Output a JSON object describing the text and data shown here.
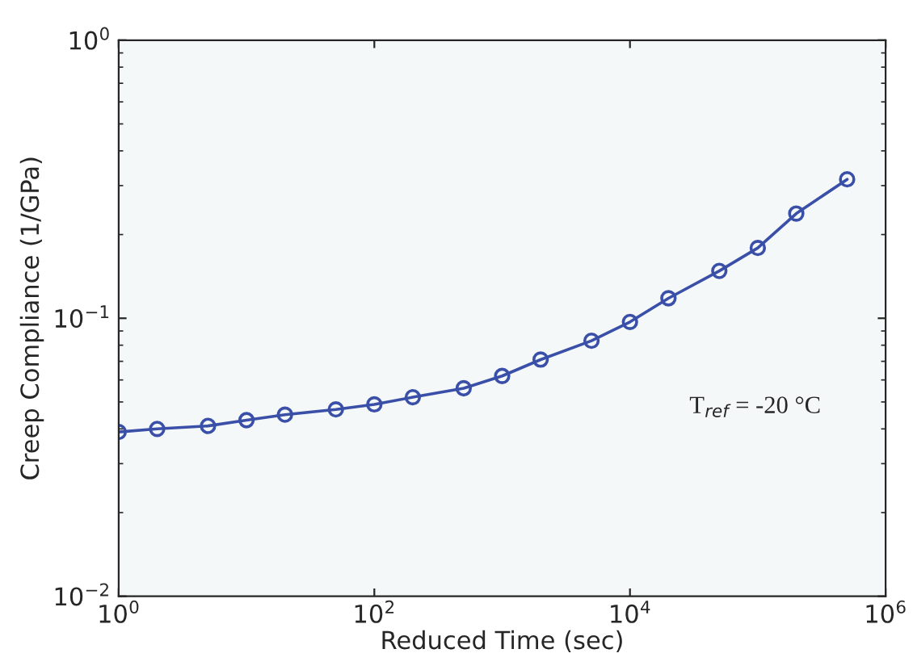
{
  "chart_data": {
    "type": "line",
    "xlabel": "Reduced Time (sec)",
    "ylabel": "Creep Compliance (1/GPa)",
    "log": "xy",
    "x": [
      1,
      2,
      5,
      10,
      20,
      50,
      100,
      200,
      500,
      1000,
      2000,
      5000,
      10000,
      20000,
      50000,
      100000,
      200000,
      500000
    ],
    "series": [
      {
        "color": "#3a4fa8",
        "values": [
          0.039,
          0.04,
          0.041,
          0.043,
          0.045,
          0.047,
          0.049,
          0.052,
          0.056,
          0.062,
          0.071,
          0.083,
          0.097,
          0.118,
          0.148,
          0.179,
          0.238,
          0.316
        ]
      }
    ],
    "marker": "circle",
    "line_style": "solid",
    "xlim": [
      1,
      1000000
    ],
    "ylim": [
      0.01,
      1
    ],
    "xticks": [
      {
        "value": 1,
        "label": "10$^{0}$"
      },
      {
        "value": 100,
        "label": "10$^{2}$"
      },
      {
        "value": 10000,
        "label": "10$^{4}$"
      },
      {
        "value": 1000000,
        "label": "10$^{6}$"
      }
    ],
    "yticks": [
      {
        "value": 0.01,
        "label": "10$^{−2}$"
      },
      {
        "value": 0.1,
        "label": "10$^{−1}$"
      },
      {
        "value": 1,
        "label": "10$^{0}$"
      }
    ],
    "annotations": [
      "T$_{ref}$ = -20 °C"
    ]
  }
}
